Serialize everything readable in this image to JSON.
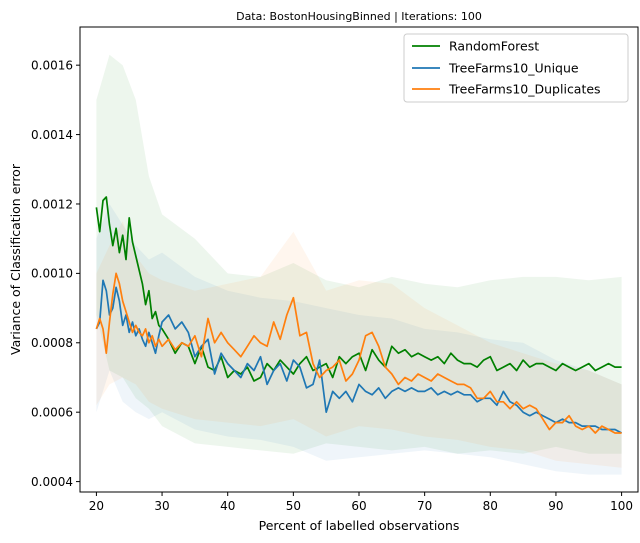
{
  "chart_data": {
    "type": "line",
    "title": "Data: BostonHousingBinned | Iterations: 100",
    "xlabel": "Percent of labelled observations",
    "ylabel": "Variance of Classification error",
    "xlim": [
      17.5,
      102.5
    ],
    "ylim": [
      0.00037,
      0.00171
    ],
    "xticks": [
      20,
      30,
      40,
      50,
      60,
      70,
      80,
      90,
      100
    ],
    "xtick_labels": [
      "20",
      "30",
      "40",
      "50",
      "60",
      "70",
      "80",
      "90",
      "100"
    ],
    "yticks": [
      0.0004,
      0.0006,
      0.0008,
      0.001,
      0.0012,
      0.0014,
      0.0016
    ],
    "ytick_labels": [
      "0.0004",
      "0.0006",
      "0.0008",
      "0.0010",
      "0.0012",
      "0.0014",
      "0.0016"
    ],
    "legend_position": "top-right",
    "series": [
      {
        "name": "RandomForest",
        "color": "#008000",
        "x": [
          20,
          20.5,
          21,
          21.5,
          22,
          22.5,
          23,
          23.5,
          24,
          24.5,
          25,
          25.5,
          26,
          26.5,
          27,
          27.5,
          28,
          28.5,
          29,
          29.5,
          30,
          31,
          32,
          33,
          34,
          35,
          36,
          37,
          38,
          39,
          40,
          41,
          42,
          43,
          44,
          45,
          46,
          47,
          48,
          49,
          50,
          51,
          52,
          53,
          54,
          55,
          56,
          57,
          58,
          59,
          60,
          61,
          62,
          63,
          64,
          65,
          66,
          67,
          68,
          69,
          70,
          71,
          72,
          73,
          74,
          75,
          76,
          77,
          78,
          79,
          80,
          81,
          82,
          83,
          84,
          85,
          86,
          87,
          88,
          89,
          90,
          91,
          92,
          93,
          94,
          95,
          96,
          97,
          98,
          99,
          100
        ],
        "y": [
          0.00119,
          0.00112,
          0.00121,
          0.00122,
          0.00114,
          0.00108,
          0.00113,
          0.00106,
          0.00111,
          0.00104,
          0.00116,
          0.00109,
          0.00105,
          0.00101,
          0.00097,
          0.00091,
          0.00095,
          0.00087,
          0.00089,
          0.00085,
          0.00084,
          0.00081,
          0.00077,
          0.0008,
          0.00079,
          0.00074,
          0.00079,
          0.00073,
          0.00072,
          0.00076,
          0.0007,
          0.00072,
          0.00071,
          0.00073,
          0.00069,
          0.0007,
          0.00074,
          0.00072,
          0.00075,
          0.00073,
          0.00071,
          0.00074,
          0.00076,
          0.00072,
          0.00073,
          0.00074,
          0.0007,
          0.00076,
          0.00074,
          0.00076,
          0.00077,
          0.00072,
          0.00078,
          0.00075,
          0.00073,
          0.00079,
          0.00077,
          0.00078,
          0.00076,
          0.00077,
          0.00076,
          0.00075,
          0.00076,
          0.00074,
          0.00077,
          0.00075,
          0.00074,
          0.00074,
          0.00073,
          0.00075,
          0.00076,
          0.00072,
          0.00073,
          0.00074,
          0.00072,
          0.00075,
          0.00073,
          0.00074,
          0.00074,
          0.00073,
          0.00072,
          0.00074,
          0.00073,
          0.00072,
          0.00073,
          0.00074,
          0.00072,
          0.00073,
          0.00074,
          0.00073,
          0.00073
        ]
      },
      {
        "name": "TreeFarms10_Unique",
        "color": "#1f77b4",
        "x": [
          20,
          20.5,
          21,
          21.5,
          22,
          22.5,
          23,
          23.5,
          24,
          24.5,
          25,
          25.5,
          26,
          26.5,
          27,
          27.5,
          28,
          28.5,
          29,
          29.5,
          30,
          31,
          32,
          33,
          34,
          35,
          36,
          37,
          38,
          39,
          40,
          41,
          42,
          43,
          44,
          45,
          46,
          47,
          48,
          49,
          50,
          51,
          52,
          53,
          54,
          55,
          56,
          57,
          58,
          59,
          60,
          61,
          62,
          63,
          64,
          65,
          66,
          67,
          68,
          69,
          70,
          71,
          72,
          73,
          74,
          75,
          76,
          77,
          78,
          79,
          80,
          81,
          82,
          83,
          84,
          85,
          86,
          87,
          88,
          89,
          90,
          91,
          92,
          93,
          94,
          95,
          96,
          97,
          98,
          99,
          100
        ],
        "y": [
          0.00084,
          0.00086,
          0.00098,
          0.00095,
          0.00088,
          0.0009,
          0.00096,
          0.00092,
          0.00085,
          0.00088,
          0.00083,
          0.00086,
          0.00082,
          0.00084,
          0.00081,
          0.00079,
          0.00083,
          0.0008,
          0.00077,
          0.00082,
          0.00086,
          0.00088,
          0.00084,
          0.00086,
          0.00083,
          0.00076,
          0.00079,
          0.00081,
          0.00071,
          0.00077,
          0.00074,
          0.00072,
          0.0007,
          0.00074,
          0.00072,
          0.00076,
          0.00068,
          0.00072,
          0.00074,
          0.00069,
          0.00075,
          0.00073,
          0.00067,
          0.00068,
          0.00075,
          0.0006,
          0.00066,
          0.00064,
          0.00066,
          0.00063,
          0.00068,
          0.00066,
          0.00065,
          0.00067,
          0.00064,
          0.00066,
          0.00067,
          0.00066,
          0.00067,
          0.00066,
          0.00066,
          0.00067,
          0.00065,
          0.00066,
          0.00065,
          0.00066,
          0.00065,
          0.00065,
          0.00063,
          0.00064,
          0.00064,
          0.00062,
          0.00066,
          0.00063,
          0.00062,
          0.0006,
          0.00059,
          0.0006,
          0.00059,
          0.00058,
          0.00057,
          0.00058,
          0.00057,
          0.00057,
          0.00056,
          0.00056,
          0.00056,
          0.00055,
          0.00055,
          0.00055,
          0.00054
        ]
      },
      {
        "name": "TreeFarms10_Duplicates",
        "color": "#ff7f0e",
        "x": [
          20,
          20.5,
          21,
          21.5,
          22,
          22.5,
          23,
          23.5,
          24,
          24.5,
          25,
          25.5,
          26,
          26.5,
          27,
          27.5,
          28,
          28.5,
          29,
          29.5,
          30,
          31,
          32,
          33,
          34,
          35,
          36,
          37,
          38,
          39,
          40,
          41,
          42,
          43,
          44,
          45,
          46,
          47,
          48,
          49,
          50,
          51,
          52,
          53,
          54,
          55,
          56,
          57,
          58,
          59,
          60,
          61,
          62,
          63,
          64,
          65,
          66,
          67,
          68,
          69,
          70,
          71,
          72,
          73,
          74,
          75,
          76,
          77,
          78,
          79,
          80,
          81,
          82,
          83,
          84,
          85,
          86,
          87,
          88,
          89,
          90,
          91,
          92,
          93,
          94,
          95,
          96,
          97,
          98,
          99,
          100
        ],
        "y": [
          0.00084,
          0.00087,
          0.00084,
          0.00077,
          0.00086,
          0.00094,
          0.001,
          0.00097,
          0.00092,
          0.00089,
          0.00086,
          0.00083,
          0.00085,
          0.00083,
          0.00082,
          0.00084,
          0.0008,
          0.00082,
          0.00079,
          0.00081,
          0.00079,
          0.00081,
          0.00078,
          0.0008,
          0.00079,
          0.00082,
          0.00076,
          0.00087,
          0.0008,
          0.00083,
          0.0008,
          0.00078,
          0.00076,
          0.00079,
          0.00082,
          0.0008,
          0.00079,
          0.00086,
          0.00081,
          0.00088,
          0.00093,
          0.00082,
          0.00083,
          0.00074,
          0.0007,
          0.00072,
          0.00073,
          0.00075,
          0.00069,
          0.00071,
          0.00075,
          0.00082,
          0.00083,
          0.00079,
          0.00073,
          0.00071,
          0.00068,
          0.0007,
          0.00069,
          0.00071,
          0.0007,
          0.00069,
          0.00071,
          0.0007,
          0.00069,
          0.00068,
          0.00068,
          0.00067,
          0.00064,
          0.00064,
          0.00066,
          0.00063,
          0.00063,
          0.00061,
          0.00063,
          0.00061,
          0.00062,
          0.00061,
          0.00058,
          0.00055,
          0.00057,
          0.00057,
          0.00059,
          0.00056,
          0.00055,
          0.00056,
          0.00054,
          0.00056,
          0.00055,
          0.00054,
          0.00054
        ]
      }
    ],
    "bands": [
      {
        "series": "RandomForest",
        "color": "#008000",
        "x": [
          20,
          22,
          24,
          26,
          28,
          30,
          35,
          40,
          45,
          50,
          55,
          60,
          65,
          70,
          75,
          80,
          85,
          90,
          95,
          100
        ],
        "upper": [
          0.0015,
          0.00163,
          0.0016,
          0.0015,
          0.00128,
          0.00117,
          0.0011,
          0.001,
          0.00099,
          0.00103,
          0.00098,
          0.00096,
          0.00099,
          0.00097,
          0.00096,
          0.00098,
          0.00099,
          0.00099,
          0.00098,
          0.00099
        ],
        "lower": [
          0.00088,
          0.00072,
          0.0007,
          0.00064,
          0.00061,
          0.00056,
          0.00051,
          0.0005,
          0.00049,
          0.00048,
          0.00051,
          0.0005,
          0.00049,
          0.0005,
          0.00048,
          0.00049,
          0.00048,
          0.0005,
          0.00048,
          0.00048
        ]
      },
      {
        "series": "TreeFarms10_Unique",
        "color": "#1f77b4",
        "x": [
          20,
          22,
          24,
          26,
          28,
          30,
          35,
          40,
          45,
          50,
          55,
          60,
          65,
          70,
          75,
          80,
          85,
          90,
          95,
          100
        ],
        "upper": [
          0.0011,
          0.0012,
          0.00114,
          0.00108,
          0.00104,
          0.00106,
          0.00099,
          0.00095,
          0.00093,
          0.00092,
          0.0009,
          0.00088,
          0.00087,
          0.00084,
          0.00083,
          0.00081,
          0.0008,
          0.00075,
          0.00072,
          0.00068
        ],
        "lower": [
          0.0006,
          0.00072,
          0.00063,
          0.0006,
          0.00058,
          0.0006,
          0.00055,
          0.00053,
          0.00052,
          0.0005,
          0.00046,
          0.00047,
          0.00048,
          0.00049,
          0.00048,
          0.00047,
          0.00045,
          0.00043,
          0.00042,
          0.00042
        ]
      },
      {
        "series": "TreeFarms10_Duplicates",
        "color": "#ff7f0e",
        "x": [
          20,
          22,
          24,
          26,
          28,
          30,
          35,
          40,
          45,
          50,
          55,
          60,
          65,
          70,
          75,
          80,
          85,
          90,
          95,
          100
        ],
        "upper": [
          0.001,
          0.00108,
          0.00115,
          0.00105,
          0.001,
          0.00098,
          0.00095,
          0.00097,
          0.00099,
          0.00112,
          0.00095,
          0.00098,
          0.00097,
          0.0009,
          0.00085,
          0.0008,
          0.00077,
          0.00074,
          0.00072,
          0.00068
        ],
        "lower": [
          0.00062,
          0.00068,
          0.0007,
          0.00068,
          0.00063,
          0.00061,
          0.00058,
          0.00057,
          0.00056,
          0.00058,
          0.00053,
          0.00056,
          0.00055,
          0.00053,
          0.00052,
          0.0005,
          0.00049,
          0.00046,
          0.00045,
          0.00044
        ]
      }
    ]
  }
}
